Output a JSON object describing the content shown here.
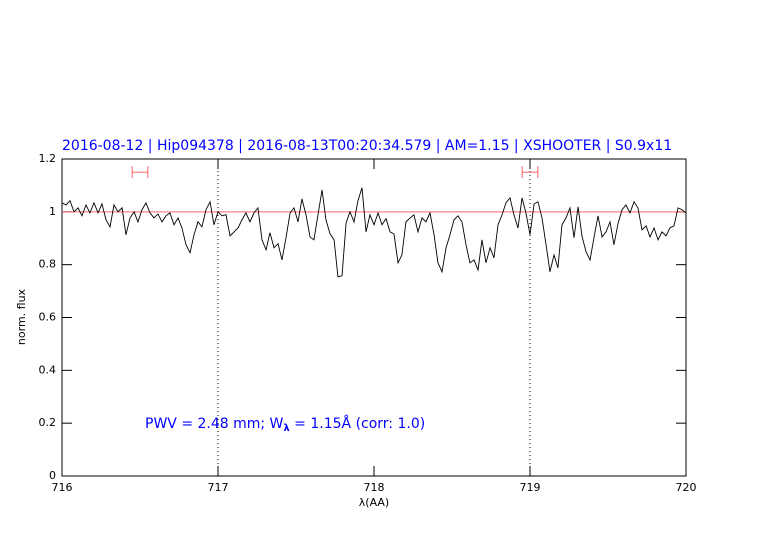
{
  "chart_data": {
    "type": "line",
    "title": "2016-08-12 | Hip094378 | 2016-08-13T00:20:34.579 | AM=1.15 | XSHOOTER | S0.9x11",
    "xlabel": "λ(AA)",
    "ylabel": "norm. flux",
    "annotation": [
      "PWV = 2.48 mm; W",
      "λ",
      " = 1.15Å  (corr: 1.0)"
    ],
    "xlim": [
      716,
      720
    ],
    "xticks": [
      716,
      717,
      718,
      719,
      720
    ],
    "ylim": [
      0,
      1.2
    ],
    "yticks": [
      0,
      0.2,
      0.4,
      0.6,
      0.8,
      1,
      1.2
    ],
    "color": "#000000",
    "hline": 1,
    "hline_color": "#ff6666",
    "vlines": [
      717,
      719
    ],
    "intervals": [
      {
        "x": [
          716.45,
          716.55
        ],
        "y": 1.15
      },
      {
        "x": [
          718.95,
          719.05
        ],
        "y": 1.15
      }
    ],
    "interval_color": "#ff6666",
    "x": [
      716.0,
      716.026,
      716.051,
      716.077,
      716.103,
      716.128,
      716.154,
      716.179,
      716.205,
      716.231,
      716.256,
      716.282,
      716.308,
      716.333,
      716.359,
      716.385,
      716.41,
      716.436,
      716.462,
      716.487,
      716.513,
      716.538,
      716.564,
      716.59,
      716.615,
      716.641,
      716.667,
      716.692,
      716.718,
      716.744,
      716.769,
      716.795,
      716.821,
      716.846,
      716.872,
      716.897,
      716.923,
      716.949,
      716.974,
      717.0,
      717.026,
      717.051,
      717.077,
      717.103,
      717.128,
      717.154,
      717.179,
      717.205,
      717.231,
      717.256,
      717.282,
      717.308,
      717.333,
      717.359,
      717.385,
      717.41,
      717.436,
      717.462,
      717.487,
      717.513,
      717.538,
      717.564,
      717.59,
      717.615,
      717.641,
      717.667,
      717.692,
      717.718,
      717.744,
      717.769,
      717.795,
      717.821,
      717.846,
      717.872,
      717.897,
      717.923,
      717.949,
      717.974,
      718.0,
      718.026,
      718.051,
      718.077,
      718.103,
      718.128,
      718.154,
      718.179,
      718.205,
      718.231,
      718.256,
      718.282,
      718.308,
      718.333,
      718.359,
      718.385,
      718.41,
      718.436,
      718.462,
      718.487,
      718.513,
      718.538,
      718.564,
      718.59,
      718.615,
      718.641,
      718.667,
      718.692,
      718.718,
      718.744,
      718.769,
      718.795,
      718.821,
      718.846,
      718.872,
      718.897,
      718.923,
      718.949,
      718.974,
      719.0,
      719.026,
      719.051,
      719.077,
      719.103,
      719.128,
      719.154,
      719.179,
      719.205,
      719.231,
      719.256,
      719.282,
      719.308,
      719.333,
      719.359,
      719.385,
      719.41,
      719.436,
      719.462,
      719.487,
      719.513,
      719.538,
      719.564,
      719.59,
      719.615,
      719.641,
      719.667,
      719.692,
      719.718,
      719.744,
      719.769,
      719.795,
      719.821,
      719.846,
      719.872,
      719.897,
      719.923,
      719.949,
      719.974,
      720.0
    ],
    "values": [
      1.034,
      1.026,
      1.042,
      1.0,
      1.015,
      0.985,
      1.026,
      0.996,
      1.034,
      0.996,
      1.03,
      0.97,
      0.943,
      1.026,
      1.0,
      1.015,
      0.913,
      0.977,
      1.0,
      0.962,
      1.008,
      1.034,
      0.996,
      0.977,
      0.992,
      0.962,
      0.985,
      0.996,
      0.951,
      0.977,
      0.939,
      0.875,
      0.845,
      0.913,
      0.962,
      0.943,
      1.008,
      1.038,
      0.951,
      1.0,
      0.985,
      0.989,
      0.909,
      0.924,
      0.939,
      0.97,
      0.996,
      0.962,
      0.996,
      1.015,
      0.894,
      0.856,
      0.921,
      0.864,
      0.879,
      0.818,
      0.902,
      0.996,
      1.015,
      0.962,
      1.049,
      0.989,
      0.905,
      0.894,
      0.989,
      1.083,
      0.97,
      0.917,
      0.894,
      0.754,
      0.758,
      0.958,
      1.0,
      0.962,
      1.042,
      1.091,
      0.924,
      0.989,
      0.951,
      0.996,
      0.951,
      0.974,
      0.924,
      0.917,
      0.807,
      0.837,
      0.962,
      0.977,
      0.989,
      0.924,
      0.977,
      0.962,
      0.996,
      0.913,
      0.807,
      0.773,
      0.864,
      0.913,
      0.97,
      0.985,
      0.962,
      0.875,
      0.807,
      0.818,
      0.78,
      0.894,
      0.807,
      0.864,
      0.826,
      0.951,
      0.989,
      1.034,
      1.053,
      0.989,
      0.939,
      1.053,
      0.996,
      0.913,
      1.03,
      1.038,
      0.977,
      0.875,
      0.773,
      0.837,
      0.788,
      0.951,
      0.977,
      1.015,
      0.902,
      1.019,
      0.909,
      0.849,
      0.818,
      0.902,
      0.985,
      0.905,
      0.924,
      0.962,
      0.875,
      0.955,
      1.008,
      1.026,
      0.996,
      1.038,
      1.015,
      0.932,
      0.947,
      0.905,
      0.939,
      0.894,
      0.924,
      0.909,
      0.939,
      0.947,
      1.015,
      1.008,
      0.996
    ]
  }
}
